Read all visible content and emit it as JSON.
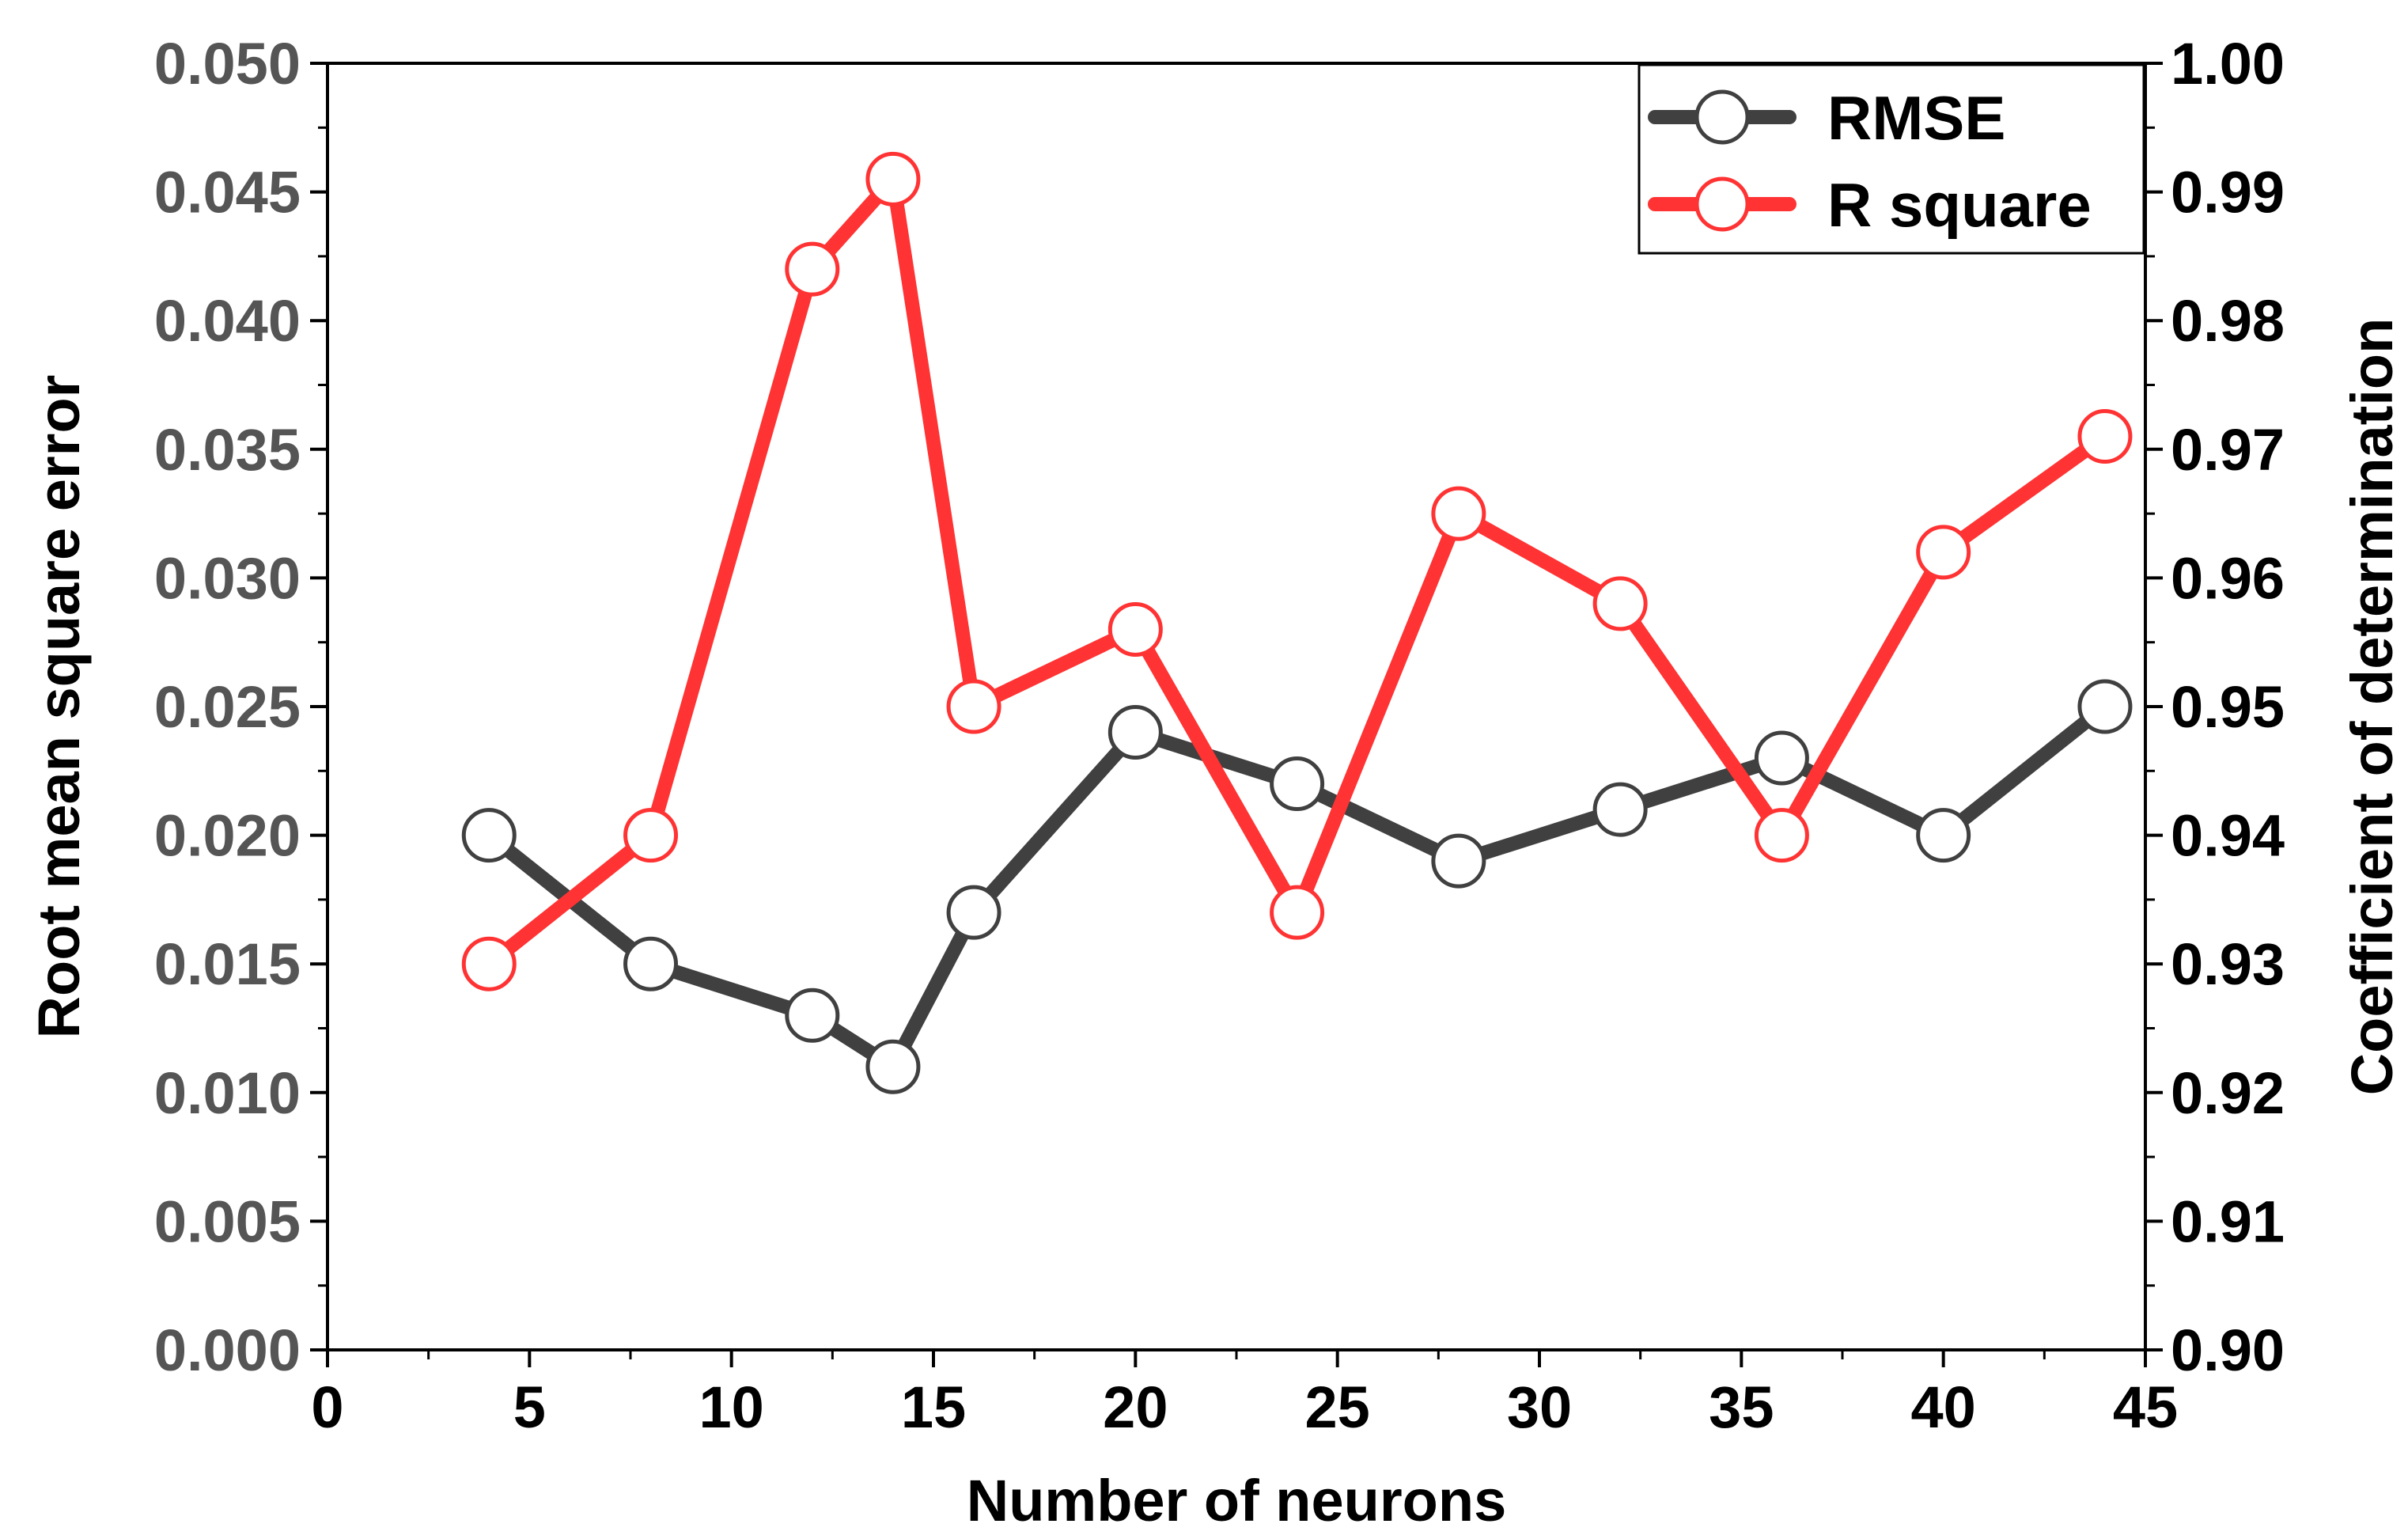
{
  "chart_data": {
    "type": "line",
    "xlabel": "Number of neurons",
    "ylabel_left": "Root mean square error",
    "ylabel_right": "Coefficient of determination",
    "xlim": [
      0,
      45
    ],
    "xticks": [
      "0",
      "5",
      "10",
      "15",
      "20",
      "25",
      "30",
      "35",
      "40",
      "45"
    ],
    "ylim_left": [
      0.0,
      0.05
    ],
    "yticks_left": [
      "0.000",
      "0.005",
      "0.010",
      "0.015",
      "0.020",
      "0.025",
      "0.030",
      "0.035",
      "0.040",
      "0.045",
      "0.050"
    ],
    "ylim_right": [
      0.9,
      1.0
    ],
    "yticks_right": [
      "0.90",
      "0.91",
      "0.92",
      "0.93",
      "0.94",
      "0.95",
      "0.96",
      "0.97",
      "0.98",
      "0.99",
      "1.00"
    ],
    "x": [
      4,
      8,
      12,
      14,
      16,
      20,
      24,
      28,
      32,
      36,
      40,
      44
    ],
    "legend_position": "top-right",
    "series": [
      {
        "name": "RMSE",
        "axis": "left",
        "color": "#404040",
        "values": [
          0.02,
          0.015,
          0.013,
          0.011,
          0.017,
          0.024,
          0.022,
          0.019,
          0.021,
          0.023,
          0.02,
          0.025
        ]
      },
      {
        "name": "R square",
        "axis": "right",
        "color": "#ff3333",
        "values": [
          0.93,
          0.94,
          0.984,
          0.991,
          0.95,
          0.956,
          0.934,
          0.965,
          0.958,
          0.94,
          0.962,
          0.971
        ]
      }
    ]
  }
}
